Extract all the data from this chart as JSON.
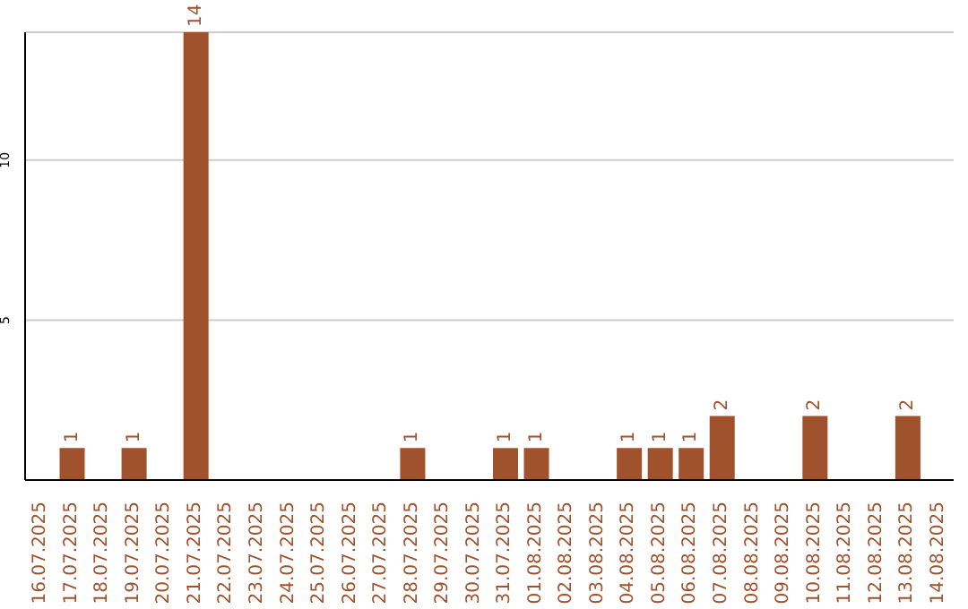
{
  "chart_data": {
    "type": "bar",
    "categories": [
      "16.07.2025",
      "17.07.2025",
      "18.07.2025",
      "19.07.2025",
      "20.07.2025",
      "21.07.2025",
      "22.07.2025",
      "23.07.2025",
      "24.07.2025",
      "25.07.2025",
      "26.07.2025",
      "27.07.2025",
      "28.07.2025",
      "29.07.2025",
      "30.07.2025",
      "31.07.2025",
      "01.08.2025",
      "02.08.2025",
      "03.08.2025",
      "04.08.2025",
      "05.08.2025",
      "06.08.2025",
      "07.08.2025",
      "08.08.2025",
      "09.08.2025",
      "10.08.2025",
      "11.08.2025",
      "12.08.2025",
      "13.08.2025",
      "14.08.2025"
    ],
    "values": [
      0,
      1,
      0,
      1,
      0,
      14,
      0,
      0,
      0,
      0,
      0,
      0,
      1,
      0,
      0,
      1,
      1,
      0,
      0,
      1,
      1,
      1,
      2,
      0,
      0,
      2,
      0,
      0,
      2,
      0
    ],
    "value_labels": [
      null,
      "1",
      null,
      "1",
      null,
      "14",
      null,
      null,
      null,
      null,
      null,
      null,
      "1",
      null,
      null,
      "1",
      "1",
      null,
      null,
      "1",
      "1",
      "1",
      "2",
      null,
      null,
      "2",
      null,
      null,
      "2",
      null
    ],
    "color": "#a0522d",
    "ylim": [
      0,
      14
    ],
    "yticks": [
      5,
      10
    ],
    "grid": "y"
  }
}
